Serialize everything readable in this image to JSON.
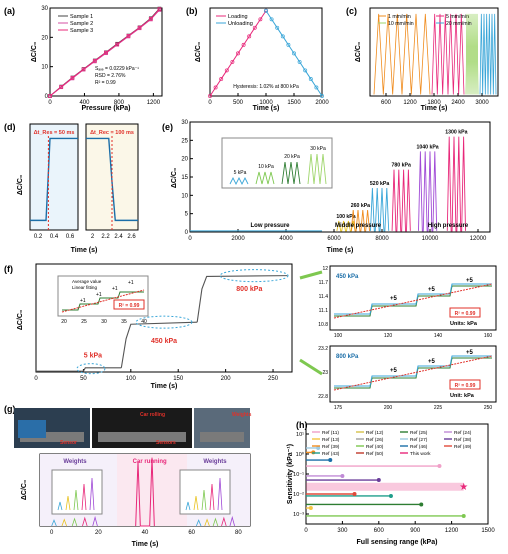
{
  "chart_data": [
    {
      "panel": "(a)",
      "type": "line",
      "xlabel": "Pressure (kPa)",
      "ylabel": "ΔC/C₀",
      "xlim": [
        0,
        1300
      ],
      "ylim": [
        0,
        30
      ],
      "xticks": [
        0,
        400,
        800,
        1200
      ],
      "yticks": [
        0,
        10,
        20,
        30
      ],
      "legend": "top-left",
      "series": [
        {
          "name": "Sample 1",
          "color": "#444444",
          "x": [
            0,
            130,
            260,
            390,
            520,
            650,
            780,
            910,
            1040,
            1170,
            1270
          ],
          "y": [
            0,
            3.2,
            6.3,
            9.2,
            12.1,
            14.9,
            17.8,
            20.6,
            23.4,
            26.5,
            29.8
          ]
        },
        {
          "name": "Sample 2",
          "color": "#d64fa3",
          "x": [
            0,
            130,
            260,
            390,
            520,
            650,
            780,
            910,
            1040,
            1170,
            1270
          ],
          "y": [
            0,
            3.0,
            6.0,
            9.0,
            11.8,
            14.6,
            17.5,
            20.3,
            23.1,
            26.1,
            29.3
          ]
        },
        {
          "name": "Sample 3",
          "color": "#e8287a",
          "x": [
            0,
            130,
            260,
            390,
            520,
            650,
            780,
            910,
            1040,
            1170,
            1270
          ],
          "y": [
            0,
            3.1,
            6.2,
            9.1,
            12.0,
            14.8,
            17.6,
            20.5,
            23.3,
            26.3,
            29.6
          ]
        }
      ],
      "annotations": [
        "Sₐᵥₑ = 0.0229 kPa⁻¹",
        "RSD = 2.76%",
        "R² = 0.99"
      ]
    },
    {
      "panel": "(b)",
      "type": "line",
      "xlabel": "Time (s)",
      "ylabel": "ΔC/C₀",
      "xlim": [
        0,
        2000
      ],
      "ylim": [
        0,
        32
      ],
      "xticks": [
        0,
        500,
        1000,
        1500,
        2000
      ],
      "legend": "top-left",
      "series": [
        {
          "name": "Loading",
          "color": "#e8287a",
          "x": [
            0,
            100,
            200,
            300,
            400,
            500,
            600,
            700,
            800,
            900,
            1000
          ],
          "y": [
            0,
            3.1,
            6.2,
            9.3,
            12.4,
            15.5,
            18.6,
            21.7,
            24.8,
            27.9,
            31
          ]
        },
        {
          "name": "Unloading",
          "color": "#3aa6d8",
          "x": [
            1000,
            1100,
            1200,
            1300,
            1400,
            1500,
            1600,
            1700,
            1800,
            1900,
            2000
          ],
          "y": [
            31,
            27.9,
            24.8,
            21.7,
            18.6,
            15.5,
            12.4,
            9.3,
            6.2,
            3.1,
            0
          ]
        }
      ],
      "annotations": [
        "Hysteresis: 1.02% at 800 kPa"
      ]
    },
    {
      "panel": "(c)",
      "type": "line",
      "xlabel": "Time (s)",
      "ylabel": "ΔC/C₀",
      "xlim": [
        200,
        3400
      ],
      "ylim": [
        0,
        30
      ],
      "xticks": [
        600,
        1200,
        1800,
        2400,
        3000
      ],
      "legend": "top",
      "series": [
        {
          "name": "1 mm/min",
          "color": "#f08c1e",
          "peaks": 6,
          "range": [
            300,
            1700
          ],
          "peak": 28
        },
        {
          "name": "5 mm/min",
          "color": "#e8287a",
          "peaks": 6,
          "range": [
            1750,
            2550
          ],
          "peak": 28
        },
        {
          "name": "10 mm/min",
          "color": "#9ed56a",
          "peaks": 6,
          "range": [
            2600,
            2900
          ],
          "peak": 28
        },
        {
          "name": "20 mm/min",
          "color": "#3aa6d8",
          "peaks": 6,
          "range": [
            2950,
            3350
          ],
          "peak": 28
        }
      ]
    },
    {
      "panel": "(d)",
      "type": "line",
      "xlabel": "Time (s)",
      "ylabel": "ΔC/C₀",
      "subplots": [
        {
          "xticks": [
            0.2,
            0.4,
            0.6
          ],
          "xlim": [
            0.1,
            0.7
          ],
          "annotation": "Δt_Res = 50 ms",
          "x": [
            0.1,
            0.3,
            0.33,
            0.35,
            0.7
          ],
          "y": [
            0.02,
            0.02,
            0.12,
            0.19,
            0.19
          ]
        },
        {
          "xticks": [
            2.0,
            2.2,
            2.4,
            2.6
          ],
          "xlim": [
            1.9,
            2.7
          ],
          "annotation": "Δt_Rec = 100 ms",
          "x": [
            1.9,
            2.25,
            2.3,
            2.35,
            2.7
          ],
          "y": [
            0.19,
            0.19,
            0.1,
            0.02,
            0.02
          ]
        }
      ]
    },
    {
      "panel": "(e)",
      "type": "line",
      "xlabel": "Time (s)",
      "ylabel": "ΔC/C₀",
      "xticks": [
        0,
        2000,
        4000,
        6000,
        8000,
        10000,
        12000
      ],
      "yticks": [
        0,
        5,
        10,
        15,
        20,
        25,
        30
      ],
      "ylim": [
        0,
        30
      ],
      "groups": [
        "Low pressure",
        "Middle pressure",
        "High pressure"
      ],
      "pressure_labels": [
        {
          "label": "100 kPa",
          "t": 6200,
          "peak": 3,
          "color": "#e8c21e"
        },
        {
          "label": "260 kPa",
          "t": 6800,
          "peak": 6,
          "color": "#f08c1e"
        },
        {
          "label": "520 kPa",
          "t": 7600,
          "peak": 12,
          "color": "#3aa6d8"
        },
        {
          "label": "780 kPa",
          "t": 8500,
          "peak": 17,
          "color": "#e8287a"
        },
        {
          "label": "1040 kPa",
          "t": 9600,
          "peak": 22,
          "color": "#a04ad6"
        },
        {
          "label": "1300 kPa",
          "t": 10800,
          "peak": 26,
          "color": "#e8287a"
        }
      ],
      "inset_labels": [
        "5 kPa",
        "10 kPa",
        "20 kPa",
        "30 kPa"
      ]
    },
    {
      "panel": "(f)",
      "type": "line",
      "xlabel": "Time (s)",
      "ylabel": "ΔC/C₀",
      "xlim": [
        0,
        270
      ],
      "ylim": [
        0,
        26
      ],
      "xticks": [
        0,
        50,
        100,
        150,
        200,
        250
      ],
      "annotations": [
        "5 kPa",
        "450 kPa",
        "800 kPa"
      ],
      "steps": [
        {
          "x": [
            0,
            50,
            52,
            90
          ],
          "y": [
            0.2,
            0.2,
            1,
            1
          ]
        },
        {
          "x": [
            90,
            95,
            100,
            170
          ],
          "y": [
            1,
            8,
            11.5,
            12
          ]
        },
        {
          "x": [
            170,
            175,
            180,
            265
          ],
          "y": [
            12,
            20,
            23,
            23.2
          ]
        }
      ],
      "inset": {
        "xticks": [
          20,
          25,
          30,
          35,
          40
        ],
        "yticks": [
          0.04,
          0.06,
          0.08
        ],
        "legend": [
          "Average value",
          "Linear fitting"
        ],
        "r2": "R² = 0.99",
        "steps": [
          "+1",
          "+1",
          "+1",
          "+1"
        ]
      },
      "zoom_450": {
        "label": "450 kPa",
        "xticks": [
          100,
          120,
          140,
          160
        ],
        "yticks": [
          10.8,
          11.1,
          11.4,
          11.7,
          12.0
        ],
        "steps": [
          "+5",
          "+5",
          "+5"
        ],
        "r2": "R² = 0.99",
        "units": "Units: kPa"
      },
      "zoom_800": {
        "label": "800 kPa",
        "xticks": [
          175,
          200,
          225,
          250
        ],
        "yticks": [
          22.8,
          23.0,
          23.2
        ],
        "steps": [
          "+5",
          "+5",
          "+5"
        ],
        "r2": "R² = 0.99",
        "units": "Unit: kPa"
      }
    },
    {
      "panel": "(g)",
      "type": "line",
      "xlabel": "Time (s)",
      "ylabel": "ΔC/C₀",
      "xticks": [
        0,
        20,
        40,
        60,
        80
      ],
      "segments": [
        "Weights",
        "Car running",
        "Weights"
      ],
      "photo_labels": [
        "Car rolling",
        "Weights",
        "Sensors",
        "Sensor"
      ]
    },
    {
      "panel": "(h)",
      "type": "scatter",
      "xlabel": "Full sensing range (kPa)",
      "ylabel": "Sensitivity (kPa⁻¹)",
      "xlim": [
        0,
        1500
      ],
      "xticks": [
        0,
        300,
        600,
        900,
        1200,
        1500
      ],
      "yticks_log": [
        "10⁻³",
        "10⁻²",
        "10⁻¹",
        "10⁰",
        "10¹"
      ],
      "yscale": "log",
      "legend": [
        {
          "name": "Ref (11)",
          "color": "#f0a0c8"
        },
        {
          "name": "Ref (12)",
          "color": "#d6c24a"
        },
        {
          "name": "Ref (25)",
          "color": "#2e7d32"
        },
        {
          "name": "Ref (24)",
          "color": "#c08ad6"
        },
        {
          "name": "Ref (13)",
          "color": "#f5c542"
        },
        {
          "name": "Ref (26)",
          "color": "#a0a0a0"
        },
        {
          "name": "Ref (27)",
          "color": "#9ecae1"
        },
        {
          "name": "Ref (38)",
          "color": "#6a3d9a"
        },
        {
          "name": "Ref (39)",
          "color": "#f08c1e"
        },
        {
          "name": "Ref (40)",
          "color": "#7ec850"
        },
        {
          "name": "Ref (46)",
          "color": "#1b6ea8"
        },
        {
          "name": "Ref (49)",
          "color": "#e04a3a"
        },
        {
          "name": "Ref (43)",
          "color": "#1f9d8a"
        },
        {
          "name": "Ref (50)",
          "color": "#c0392b"
        },
        {
          "name": "This work",
          "color": "#e8287a"
        }
      ],
      "points": [
        {
          "range": 1300,
          "sens": 0.0229,
          "color": "#e8287a",
          "marker": "star"
        },
        {
          "range": 1100,
          "sens": 0.25,
          "color": "#f0a0c8"
        },
        {
          "range": 1300,
          "sens": 0.0008,
          "color": "#7ec850"
        },
        {
          "range": 950,
          "sens": 0.003,
          "color": "#2e7d32"
        },
        {
          "range": 700,
          "sens": 0.008,
          "color": "#1f9d8a"
        },
        {
          "range": 600,
          "sens": 0.05,
          "color": "#6a3d9a"
        },
        {
          "range": 400,
          "sens": 0.01,
          "color": "#e04a3a"
        },
        {
          "range": 300,
          "sens": 0.08,
          "color": "#c08ad6"
        },
        {
          "range": 200,
          "sens": 0.5,
          "color": "#1b6ea8"
        },
        {
          "range": 100,
          "sens": 2,
          "color": "#9ecae1"
        },
        {
          "range": 60,
          "sens": 1.2,
          "color": "#f08c1e"
        },
        {
          "range": 40,
          "sens": 0.002,
          "color": "#f5c542"
        }
      ]
    }
  ]
}
